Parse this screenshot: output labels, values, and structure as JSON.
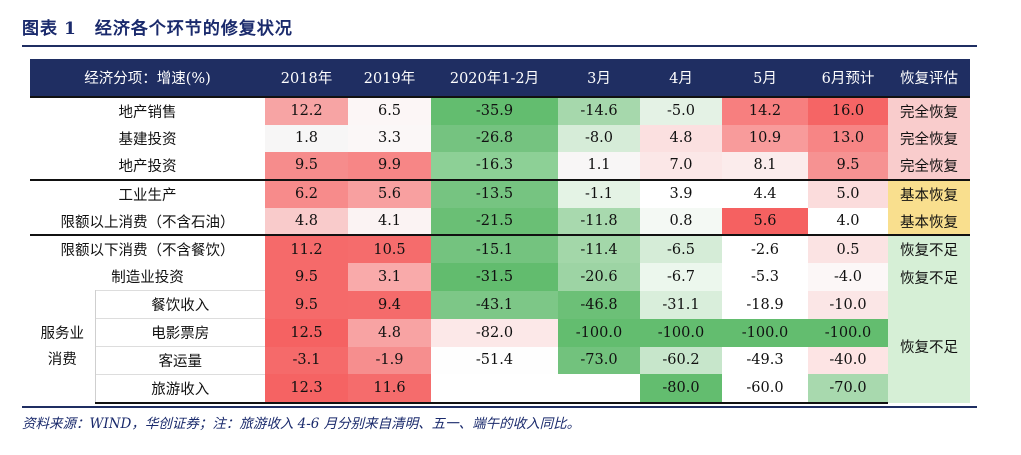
{
  "figure": {
    "label": "图表",
    "number": "1",
    "title": "经济各个环节的修复状况"
  },
  "table": {
    "headers": [
      "经济分项：增速(%)",
      "2018年",
      "2019年",
      "2020年1-2月",
      "3月",
      "4月",
      "5月",
      "6月预计",
      "恢复评估"
    ],
    "rows": [
      {
        "label": "地产销售",
        "values": [
          "12.2",
          "6.5",
          "-35.9",
          "-14.6",
          "-5.0",
          "14.2",
          "16.0"
        ],
        "colors": [
          "#f7a4a4",
          "#fcf6f6",
          "#63bd6f",
          "#a6d8ac",
          "#e4f2e5",
          "#f77f7f",
          "#f56565"
        ],
        "evaluation": "完全恢复",
        "eval_color": "#f9cccc"
      },
      {
        "label": "基建投资",
        "values": [
          "1.8",
          "3.3",
          "-26.8",
          "-8.0",
          "4.8",
          "10.9",
          "13.0"
        ],
        "colors": [
          "#f7f6f6",
          "#fbf7f7",
          "#75c380",
          "#d6ecd8",
          "#fbe0e0",
          "#f89b9b",
          "#f78585"
        ],
        "evaluation": "完全恢复",
        "eval_color": "#f9cccc"
      },
      {
        "label": "地产投资",
        "values": [
          "9.5",
          "9.9",
          "-16.3",
          "1.1",
          "7.0",
          "8.1",
          "9.5"
        ],
        "colors": [
          "#f68c8c",
          "#f78686",
          "#8dd096",
          "#f8f6f6",
          "#fbe7e7",
          "#fbecec",
          "#f69292"
        ],
        "evaluation": "完全恢复",
        "eval_color": "#f9cccc"
      },
      {
        "label": "工业生产",
        "values": [
          "6.2",
          "5.6",
          "-13.5",
          "-1.1",
          "3.9",
          "4.4",
          "5.0"
        ],
        "colors": [
          "#f78b8b",
          "#f8a0a0",
          "#76c481",
          "#e4f3e5",
          "#ffffff",
          "#ffffff",
          "#fbdcdc"
        ],
        "evaluation": "基本恢复",
        "eval_color": "#f9df8e"
      },
      {
        "label": "限额以上消费（不含石油）",
        "values": [
          "4.8",
          "4.1",
          "-21.5",
          "-11.8",
          "0.8",
          "5.6",
          "4.0"
        ],
        "colors": [
          "#f9cbcb",
          "#fbf3f3",
          "#6abf75",
          "#a8d9ae",
          "#f4f9f4",
          "#f56161",
          "#ffffff"
        ],
        "evaluation": "基本恢复",
        "eval_color": "#f9df8e"
      },
      {
        "label": "限额以下消费（不含餐饮）",
        "values": [
          "11.2",
          "10.5",
          "-15.1",
          "-11.4",
          "-6.5",
          "-2.6",
          "0.5"
        ],
        "colors": [
          "#f56a6a",
          "#f56c6c",
          "#74c37f",
          "#a3d7a9",
          "#d5ecd7",
          "#ffffff",
          "#fbe3e3"
        ],
        "evaluation": "恢复不足",
        "eval_color": "#d6efd6"
      },
      {
        "label": "制造业投资",
        "values": [
          "9.5",
          "3.1",
          "-31.5",
          "-20.6",
          "-6.7",
          "-5.3",
          "-4.0"
        ],
        "colors": [
          "#f56a6a",
          "#f9aaaa",
          "#62bc6e",
          "#9dd4a4",
          "#ecf7ed",
          "#ffffff",
          "#fcf7f7"
        ],
        "evaluation": "恢复不足",
        "eval_color": "#d6efd6"
      }
    ],
    "service_group": {
      "label_line1": "服务业",
      "label_line2": "消费",
      "evaluation": "恢复不足",
      "eval_color": "#d6efd6",
      "rows": [
        {
          "label": "餐饮收入",
          "values": [
            "9.5",
            "9.4",
            "-43.1",
            "-46.8",
            "-31.1",
            "-18.9",
            "-10.0"
          ],
          "colors": [
            "#f56a6a",
            "#f56b6b",
            "#7dc787",
            "#6cc077",
            "#d9eedb",
            "#ffffff",
            "#fbe6e6"
          ]
        },
        {
          "label": "电影票房",
          "values": [
            "12.5",
            "4.8",
            "-82.0",
            "-100.0",
            "-100.0",
            "-100.0",
            "-100.0"
          ],
          "colors": [
            "#f56262",
            "#f8a3a3",
            "#fce8e8",
            "#63bd6f",
            "#63bd6f",
            "#63bd6f",
            "#63bd6f"
          ]
        },
        {
          "label": "客运量",
          "values": [
            "-3.1",
            "-1.9",
            "-51.4",
            "-73.0",
            "-60.2",
            "-49.3",
            "-40.0"
          ],
          "colors": [
            "#f56a6a",
            "#f68e8e",
            "#fefefe",
            "#72c27d",
            "#c7e6cb",
            "#ffffff",
            "#fde4e4"
          ]
        },
        {
          "label": "旅游收入",
          "values": [
            "12.3",
            "11.6",
            "",
            "",
            "-80.0",
            "-60.0",
            "-70.0"
          ],
          "colors": [
            "#f56363",
            "#f56c6c",
            "#ffffff",
            "#ffffff",
            "#63bd6f",
            "#ffffff",
            "#a8d9ae"
          ]
        }
      ]
    }
  },
  "source_note": "资料来源：WIND，华创证券；注：旅游收入 4-6 月分别来自清明、五一、端午的收入同比。"
}
